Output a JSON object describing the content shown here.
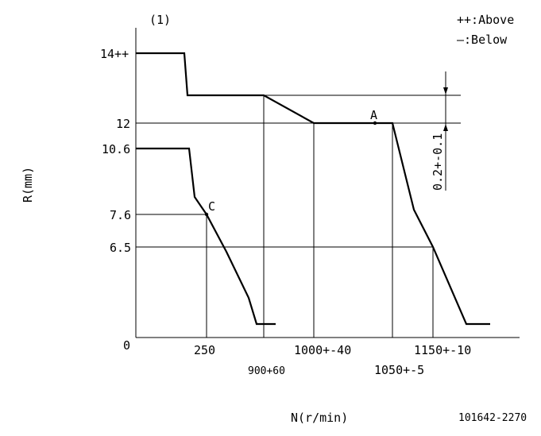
{
  "diagram": {
    "index_label": "(1)",
    "legend": {
      "above": "++:Above",
      "below": "—:Below"
    },
    "y_axis_title": "R(mm)",
    "x_axis_title": "N(r/min)",
    "drawing_number": "101642-2270",
    "y_ticks": {
      "t14": "14++",
      "t12": "12",
      "t106": "10.6",
      "t76": "7.6",
      "t65": "6.5",
      "t0": "0"
    },
    "x_ticks": {
      "t250": "250",
      "t900": "900+60",
      "t1000": "1000+-40",
      "t1050": "1050+-5",
      "t1150": "1150+-10"
    },
    "points": {
      "a": "A",
      "c": "C"
    },
    "dimension": "0.2+-0.1"
  }
}
